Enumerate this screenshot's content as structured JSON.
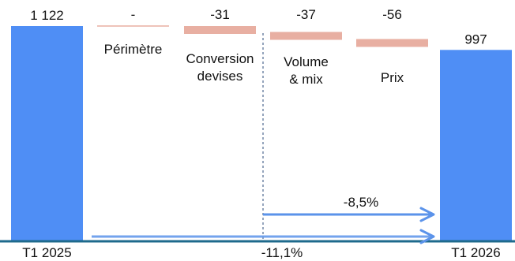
{
  "chart_data": {
    "type": "waterfall",
    "unit": "",
    "steps": [
      {
        "key": "t1_2025",
        "label": "T1 2025",
        "value": 1122,
        "value_label": "1 122",
        "kind": "total"
      },
      {
        "key": "perimetre",
        "label": "Périmètre",
        "value": 0,
        "value_label": "-",
        "kind": "delta"
      },
      {
        "key": "conversion",
        "label": "Conversion devises",
        "value": -31,
        "value_label": "-31",
        "kind": "delta"
      },
      {
        "key": "volume_mix",
        "label": "Volume & mix",
        "value": -37,
        "value_label": "-37",
        "kind": "delta"
      },
      {
        "key": "prix",
        "label": "Prix",
        "value": -56,
        "value_label": "-56",
        "kind": "delta"
      },
      {
        "key": "t1_2026",
        "label": "T1 2026",
        "value": 997,
        "value_label": "997",
        "kind": "total"
      }
    ],
    "variations": [
      {
        "label": "-8,5%",
        "from_step": "volume_mix",
        "to_step": "t1_2026"
      },
      {
        "label": "-11,1%",
        "from_step": "t1_2025",
        "to_step": "t1_2026"
      }
    ],
    "colors": {
      "total": "#4f8ef5",
      "delta_negative": "#e8afa2",
      "baseline": "#1e6a8c",
      "arrow": "#5b93ea",
      "separator": "#2a4a7a"
    }
  }
}
